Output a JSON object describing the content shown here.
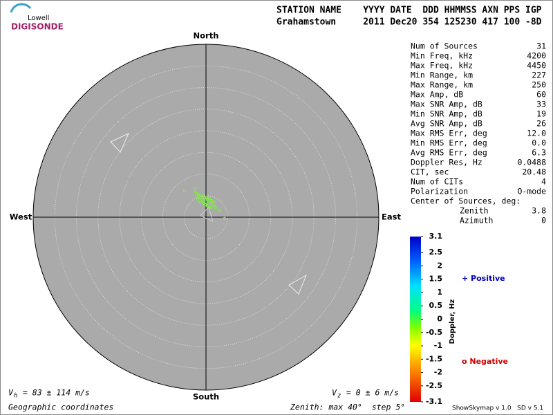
{
  "logo": {
    "top": "Lowell",
    "bottom": "DIGISONDE"
  },
  "header": {
    "line1": "STATION NAME    YYYY DATE  DDD HHMMSS AXN PPS IGP",
    "line2": "Grahamstown     2011 Dec20 354 125230 417 100 -8D"
  },
  "stats": {
    "rows": [
      [
        "Num of Sources",
        "31"
      ],
      [
        "Min Freq, kHz",
        "4200"
      ],
      [
        "Max Freq, kHz",
        "4450"
      ],
      [
        "Min Range, km",
        "227"
      ],
      [
        "Max Range, km",
        "250"
      ],
      [
        "Max Amp, dB",
        "60"
      ],
      [
        "Max SNR Amp, dB",
        "33"
      ],
      [
        "Min SNR Amp, dB",
        "19"
      ],
      [
        "Avg SNR Amp, dB",
        "26"
      ],
      [
        "Max RMS Err, deg",
        "12.0"
      ],
      [
        "Min RMS Err, deg",
        "0.0"
      ],
      [
        "Avg RMS Err, deg",
        "6.3"
      ],
      [
        "Doppler Res, Hz",
        "0.0488"
      ],
      [
        "CIT, sec",
        "20.48"
      ],
      [
        "Num of CITs",
        "4"
      ],
      [
        "Polarization",
        "O-mode"
      ]
    ],
    "center_title": "Center of Sources, deg:",
    "center_rows": [
      [
        "Zenith",
        "3.8"
      ],
      [
        "Azimuth",
        "0"
      ]
    ]
  },
  "footer": {
    "vh_symbol": "V",
    "vh_sub": "h",
    "vh_text": " = 83 ± 114 m/s",
    "vz_symbol": "V",
    "vz_sub": "z",
    "vz_text": " = 0 ± 6 m/s",
    "coords": "Geographic coordinates",
    "zenith": "Zenith: max 40°  step 5°",
    "version": "ShowSkymap v 1.0   SD v 5.1"
  },
  "chart_data": [
    {
      "type": "scatter",
      "north": "North",
      "south": "South",
      "east": "East",
      "west": "West",
      "color": "#80f040",
      "xlim": [
        -40,
        40
      ],
      "ylim": [
        -40,
        40
      ],
      "rings": [
        5,
        10,
        15,
        20,
        25,
        30,
        35,
        40
      ],
      "x": [
        -5.0,
        -2.7,
        -2.1,
        -1.6,
        -1.3,
        -1.0,
        -0.5,
        0,
        0.3,
        0.6,
        1.1,
        1.6,
        1.9,
        2.2,
        3.2,
        4.3,
        -1.9,
        -1.3,
        -0.6,
        -0.2,
        0.3,
        1.0,
        -1.8,
        -0.8,
        -0.3,
        0.2,
        0.8,
        1.3,
        1.8,
        -2.4,
        1.1
      ],
      "values": [
        6.2,
        6.6,
        5.4,
        5.1,
        4.6,
        4.2,
        3.8,
        3.5,
        4.2,
        3.7,
        3.4,
        3.0,
        2.6,
        2.2,
        1.6,
        -0.3,
        4.2,
        3.5,
        3.2,
        2.9,
        2.7,
        2.4,
        5.0,
        5.0,
        4.5,
        4.6,
        4.3,
        3.8,
        3.5,
        5.8,
        2.2
      ]
    },
    {
      "type": "colorbar",
      "title": "Doppler, Hz",
      "ylim": [
        -3.1,
        3.1
      ],
      "yticks": [
        3.1,
        2.5,
        2,
        1.5,
        1,
        0.5,
        0,
        -0.5,
        -1,
        -1.5,
        -2,
        -2.5,
        -3.1
      ],
      "positive": "+ Positive",
      "negative": "o Negative"
    }
  ]
}
